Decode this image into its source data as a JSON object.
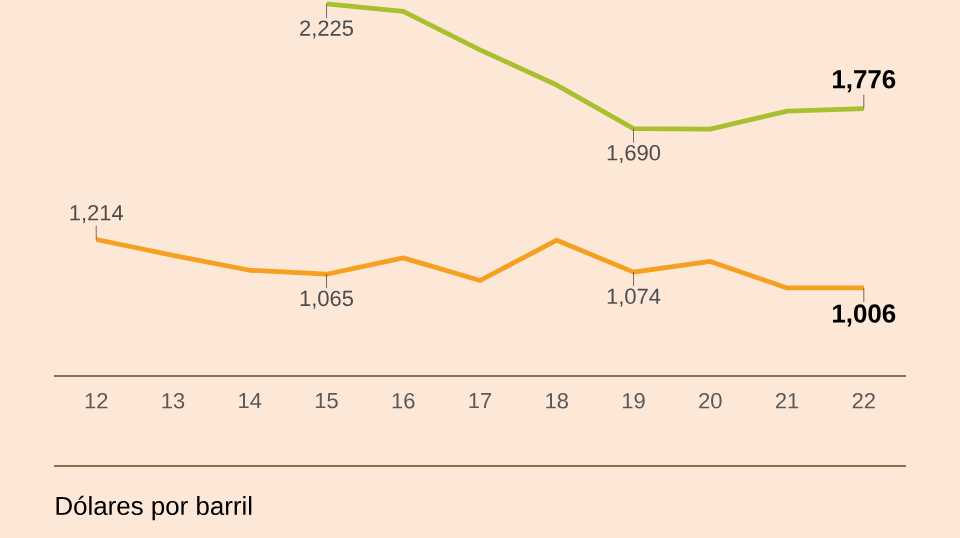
{
  "chart_data": {
    "type": "line",
    "x": [
      12,
      13,
      14,
      15,
      16,
      17,
      18,
      19,
      20,
      21,
      22
    ],
    "series": [
      {
        "color": "#a8c030",
        "values": [
          null,
          null,
          null,
          2225,
          2193,
          2028,
          1877,
          1690,
          1688,
          1765,
          1776
        ],
        "value_labels": [
          null,
          null,
          null,
          "2,225",
          null,
          null,
          null,
          "1,690",
          null,
          null,
          "1,776"
        ]
      },
      {
        "color": "#f5a020",
        "values": [
          1214,
          1146,
          1082,
          1065,
          1135,
          1038,
          1211,
          1074,
          1120,
          1006,
          1006
        ],
        "value_labels": [
          "1,214",
          null,
          null,
          "1,065",
          null,
          null,
          null,
          "1,074",
          null,
          null,
          "1,006"
        ]
      }
    ],
    "xlim": [
      11.45,
      22.55
    ],
    "xticks": [
      12,
      13,
      14,
      15,
      16,
      17,
      18,
      19,
      20,
      21,
      22
    ],
    "tick_labels": "x",
    "marker": "none",
    "line_style": "solid",
    "annotations": [
      "Dólares por barril"
    ]
  }
}
